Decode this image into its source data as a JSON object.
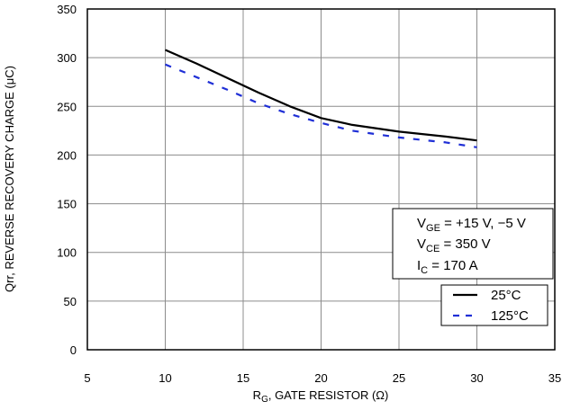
{
  "chart_data": {
    "type": "line",
    "xlabel_main": "R",
    "xlabel_sub": "G",
    "xlabel_rest": ", GATE RESISTOR (Ω)",
    "ylabel": "Qrr, REVERSE RECOVERY CHARGE (μC)",
    "xlim": [
      5,
      35
    ],
    "ylim": [
      0,
      350
    ],
    "x_ticks": [
      "5",
      "10",
      "15",
      "20",
      "25",
      "30",
      "35"
    ],
    "y_ticks": [
      "0",
      "50",
      "100",
      "150",
      "200",
      "250",
      "300",
      "350"
    ],
    "grid": true,
    "series": [
      {
        "name": "25°C",
        "color": "#000000",
        "style": "solid",
        "x": [
          10,
          12,
          14,
          16,
          18,
          20,
          22,
          25,
          28,
          30
        ],
        "y": [
          308,
          294,
          279,
          264,
          250,
          238,
          231,
          224,
          219,
          215
        ]
      },
      {
        "name": "125°C",
        "color": "#1f2fd6",
        "style": "dashed",
        "x": [
          10,
          12,
          14,
          16,
          18,
          20,
          22,
          25,
          28,
          30
        ],
        "y": [
          293,
          280,
          267,
          253,
          242,
          233,
          225,
          218,
          213,
          208
        ]
      }
    ],
    "conditions": [
      {
        "main": "V",
        "sub": "GE",
        "rest": " = +15 V, −5 V"
      },
      {
        "main": "V",
        "sub": "CE",
        "rest": " = 350 V"
      },
      {
        "main": "I",
        "sub": "C",
        "rest": " = 170 A"
      }
    ],
    "legend_position": "bottom-right"
  }
}
